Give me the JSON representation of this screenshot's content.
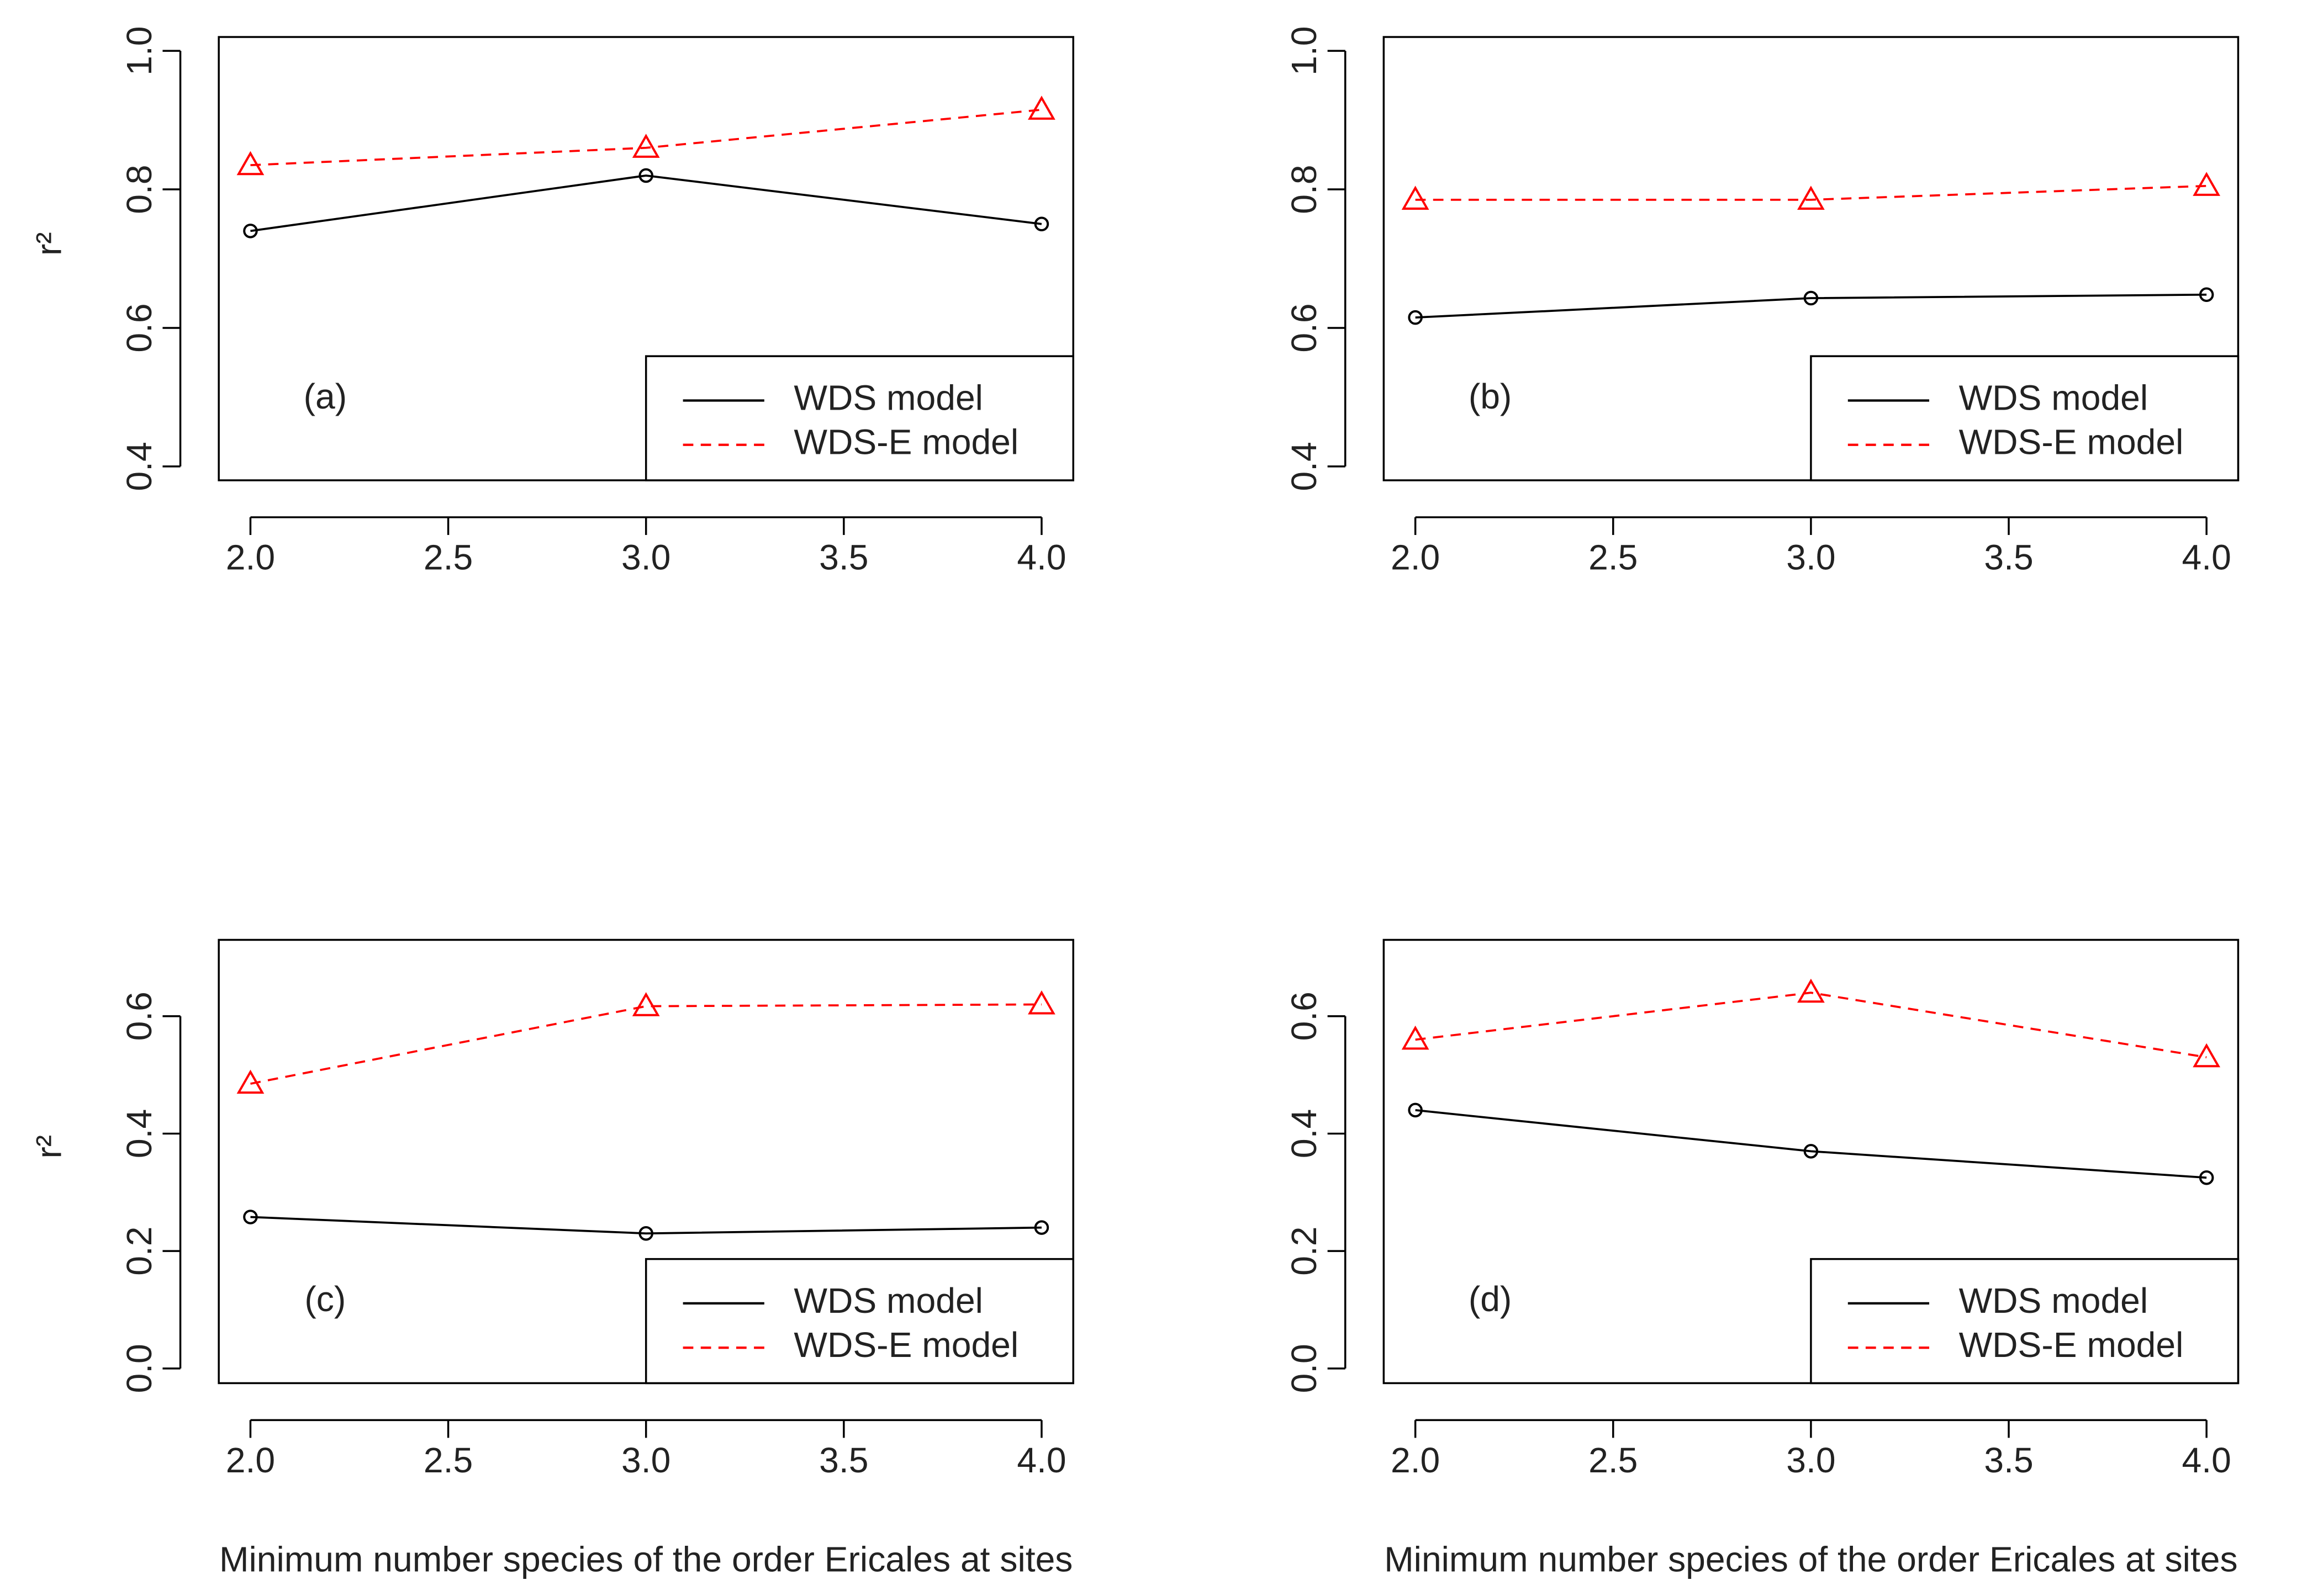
{
  "chart_data": [
    {
      "type": "line",
      "annotation": "(a)",
      "ylabel": "r²",
      "x": [
        2,
        3,
        4
      ],
      "xlim": [
        1.92,
        4.08
      ],
      "ylim": [
        0.38,
        1.02
      ],
      "xticks": [
        {
          "value": 2,
          "label": "2.0"
        },
        {
          "value": 2.5,
          "label": "2.5"
        },
        {
          "value": 3,
          "label": "3.0"
        },
        {
          "value": 3.5,
          "label": "3.5"
        },
        {
          "value": 4,
          "label": "4.0"
        }
      ],
      "yticks": [
        0.4,
        0.6,
        0.8,
        {
          "value": 1,
          "label": "1.0"
        }
      ],
      "legend": "bottom-right",
      "series": [
        {
          "name": "WDS model",
          "color": "#000000",
          "linestyle": "solid",
          "marker": "circle",
          "values": [
            0.74,
            0.82,
            0.75
          ]
        },
        {
          "name": "WDS-E model",
          "color": "#ff0000",
          "linestyle": "dashed",
          "marker": "triangle",
          "values": [
            0.835,
            0.86,
            0.915
          ]
        }
      ]
    },
    {
      "type": "line",
      "annotation": "(b)",
      "x": [
        2,
        3,
        4
      ],
      "xlim": [
        1.92,
        4.08
      ],
      "ylim": [
        0.38,
        1.02
      ],
      "xticks": [
        {
          "value": 2,
          "label": "2.0"
        },
        {
          "value": 2.5,
          "label": "2.5"
        },
        {
          "value": 3,
          "label": "3.0"
        },
        {
          "value": 3.5,
          "label": "3.5"
        },
        {
          "value": 4,
          "label": "4.0"
        }
      ],
      "yticks": [
        0.4,
        0.6,
        0.8,
        {
          "value": 1,
          "label": "1.0"
        }
      ],
      "legend": "bottom-right",
      "series": [
        {
          "name": "WDS model",
          "color": "#000000",
          "linestyle": "solid",
          "marker": "circle",
          "values": [
            0.615,
            0.643,
            0.648
          ]
        },
        {
          "name": "WDS-E model",
          "color": "#ff0000",
          "linestyle": "dashed",
          "marker": "triangle",
          "values": [
            0.785,
            0.785,
            0.805
          ]
        }
      ]
    },
    {
      "type": "line",
      "annotation": "(c)",
      "ylabel": "r²",
      "xlabel": "Minimum number species of the order Ericales at sites",
      "x": [
        2,
        3,
        4
      ],
      "xlim": [
        1.92,
        4.08
      ],
      "ylim": [
        -0.025,
        0.73
      ],
      "xticks": [
        {
          "value": 2,
          "label": "2.0"
        },
        {
          "value": 2.5,
          "label": "2.5"
        },
        {
          "value": 3,
          "label": "3.0"
        },
        {
          "value": 3.5,
          "label": "3.5"
        },
        {
          "value": 4,
          "label": "4.0"
        }
      ],
      "yticks": [
        {
          "value": 0,
          "label": "0.0"
        },
        0.2,
        0.4,
        0.6
      ],
      "legend": "bottom-right",
      "series": [
        {
          "name": "WDS model",
          "color": "#000000",
          "linestyle": "solid",
          "marker": "circle",
          "values": [
            0.258,
            0.23,
            0.24
          ]
        },
        {
          "name": "WDS-E model",
          "color": "#ff0000",
          "linestyle": "dashed",
          "marker": "triangle",
          "values": [
            0.485,
            0.617,
            0.62
          ]
        }
      ]
    },
    {
      "type": "line",
      "annotation": "(d)",
      "xlabel": "Minimum number species of the order Ericales at sites",
      "x": [
        2,
        3,
        4
      ],
      "xlim": [
        1.92,
        4.08
      ],
      "ylim": [
        -0.025,
        0.73
      ],
      "xticks": [
        {
          "value": 2,
          "label": "2.0"
        },
        {
          "value": 2.5,
          "label": "2.5"
        },
        {
          "value": 3,
          "label": "3.0"
        },
        {
          "value": 3.5,
          "label": "3.5"
        },
        {
          "value": 4,
          "label": "4.0"
        }
      ],
      "yticks": [
        {
          "value": 0,
          "label": "0.0"
        },
        0.2,
        0.4,
        0.6
      ],
      "legend": "bottom-right",
      "series": [
        {
          "name": "WDS model",
          "color": "#000000",
          "linestyle": "solid",
          "marker": "circle",
          "values": [
            0.44,
            0.37,
            0.325
          ]
        },
        {
          "name": "WDS-E model",
          "color": "#ff0000",
          "linestyle": "dashed",
          "marker": "triangle",
          "values": [
            0.56,
            0.64,
            0.53
          ]
        }
      ]
    }
  ]
}
